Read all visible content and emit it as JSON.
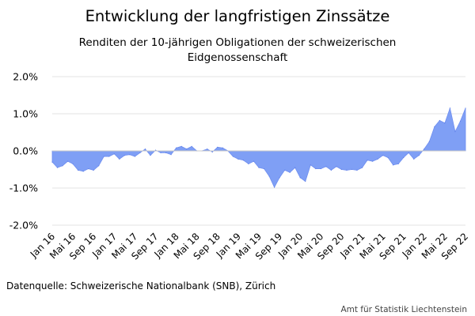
{
  "chart_data": {
    "type": "area",
    "title": "Entwicklung der langfristigen Zinssätze",
    "subtitle_line1": "Renditen der 10-jährigen Obligationen der schweizerischen",
    "subtitle_line2": "Eidgenossenschaft",
    "source": "Datenquelle: Schweizerische Nationalbank (SNB), Zürich",
    "credit": "Amt für Statistik Liechtenstein",
    "ylim": [
      -2.0,
      2.0
    ],
    "y_ticks": [
      "-2.0%",
      "-1.0%",
      "0.0%",
      "1.0%",
      "2.0%"
    ],
    "x_tick_labels": [
      "Jan 16",
      "Mai 16",
      "Sep 16",
      "Jan 17",
      "Mai 17",
      "Sep 17",
      "Jan 18",
      "Mai 18",
      "Sep 18",
      "Jan 19",
      "Mai 19",
      "Sep 19",
      "Jan 20",
      "Mai 20",
      "Sep 20",
      "Jan 21",
      "Mai 21",
      "Sep 21",
      "Jan 22",
      "Mai 22",
      "Sep 22"
    ],
    "grid": true,
    "area_color": "#7f9ff5",
    "values": [
      -0.3,
      -0.45,
      -0.4,
      -0.28,
      -0.35,
      -0.52,
      -0.55,
      -0.48,
      -0.52,
      -0.4,
      -0.15,
      -0.15,
      -0.08,
      -0.22,
      -0.12,
      -0.1,
      -0.15,
      -0.05,
      0.05,
      -0.12,
      0.02,
      -0.05,
      -0.05,
      -0.1,
      0.08,
      0.12,
      0.05,
      0.12,
      0.0,
      0.0,
      0.05,
      -0.03,
      0.1,
      0.08,
      0.0,
      -0.15,
      -0.22,
      -0.25,
      -0.35,
      -0.28,
      -0.45,
      -0.48,
      -0.68,
      -0.98,
      -0.72,
      -0.52,
      -0.58,
      -0.45,
      -0.72,
      -0.82,
      -0.38,
      -0.48,
      -0.48,
      -0.42,
      -0.52,
      -0.42,
      -0.5,
      -0.52,
      -0.5,
      -0.52,
      -0.45,
      -0.25,
      -0.28,
      -0.22,
      -0.12,
      -0.18,
      -0.38,
      -0.35,
      -0.18,
      -0.05,
      -0.22,
      -0.12,
      0.05,
      0.25,
      0.65,
      0.82,
      0.75,
      1.15,
      0.52,
      0.8,
      1.15
    ]
  }
}
